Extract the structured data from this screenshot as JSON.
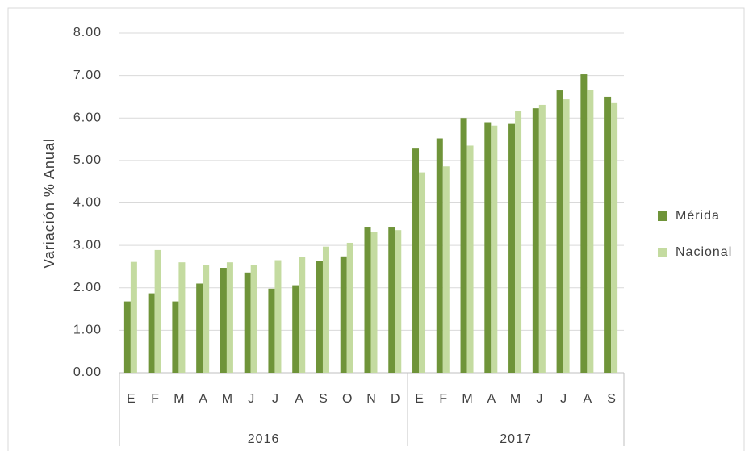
{
  "chart_data": {
    "type": "bar",
    "y_label": "Variación % Anual",
    "categories": [
      "E",
      "F",
      "M",
      "A",
      "M",
      "J",
      "J",
      "A",
      "S",
      "O",
      "N",
      "D",
      "E",
      "F",
      "M",
      "A",
      "M",
      "J",
      "J",
      "A",
      "S"
    ],
    "groups": [
      {
        "name": "2016",
        "start": 0,
        "end": 11
      },
      {
        "name": "2017",
        "start": 12,
        "end": 20
      }
    ],
    "series": [
      {
        "name": "Mérida",
        "color": "#6f9439",
        "values": [
          1.68,
          1.87,
          1.68,
          2.1,
          2.47,
          2.36,
          1.98,
          2.06,
          2.64,
          2.74,
          3.42,
          3.42,
          5.28,
          5.52,
          6.0,
          5.9,
          5.86,
          6.23,
          6.65,
          7.03,
          6.5
        ]
      },
      {
        "name": "Nacional",
        "color": "#c4dba0",
        "values": [
          2.61,
          2.89,
          2.6,
          2.54,
          2.6,
          2.54,
          2.65,
          2.73,
          2.97,
          3.06,
          3.31,
          3.36,
          4.72,
          4.86,
          5.35,
          5.82,
          6.16,
          6.31,
          6.44,
          6.66,
          6.35
        ]
      }
    ],
    "ylim": [
      0,
      8
    ],
    "yticks": [
      {
        "value": 0,
        "label": "0.00"
      },
      {
        "value": 1,
        "label": "1.00"
      },
      {
        "value": 2,
        "label": "2.00"
      },
      {
        "value": 3,
        "label": "3.00"
      },
      {
        "value": 4,
        "label": "4.00"
      },
      {
        "value": 5,
        "label": "5.00"
      },
      {
        "value": 6,
        "label": "6.00"
      },
      {
        "value": 7,
        "label": "7.00"
      },
      {
        "value": 8,
        "label": "8.00"
      }
    ],
    "grid": true,
    "legend": "right"
  }
}
